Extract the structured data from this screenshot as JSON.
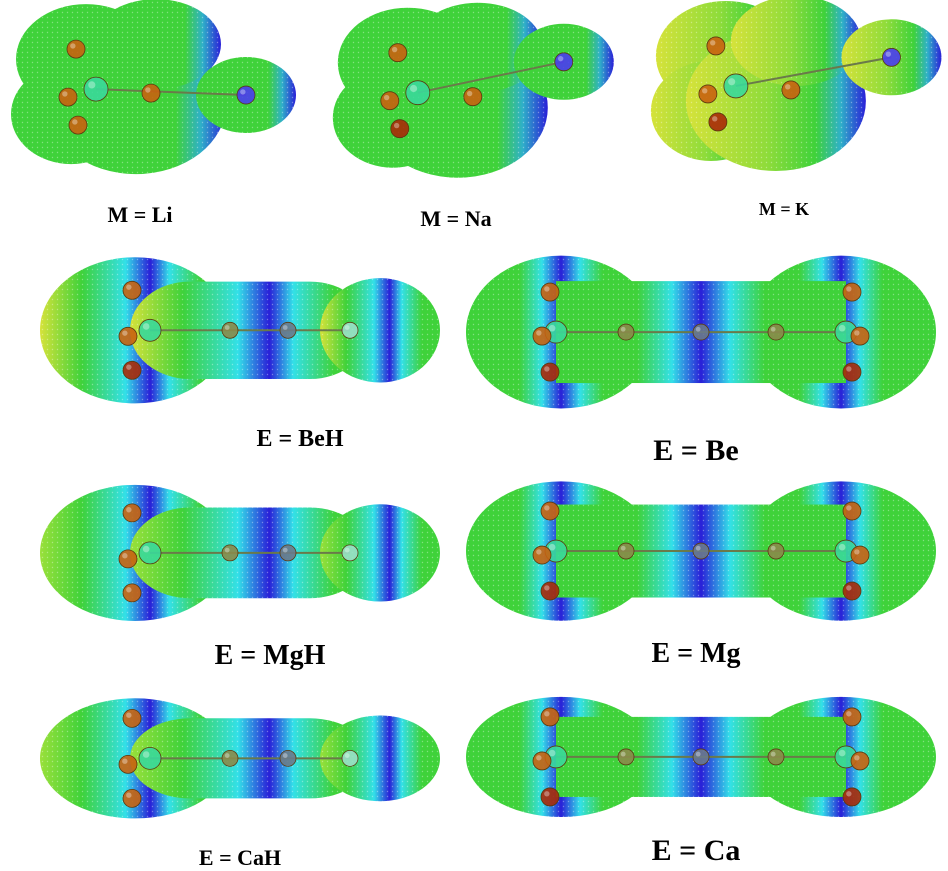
{
  "figure": {
    "panels": [
      {
        "id": "m-li",
        "label": "M = Li",
        "kind": "small",
        "tail": "right"
      },
      {
        "id": "m-na",
        "label": "M = Na",
        "kind": "small",
        "tail": "right"
      },
      {
        "id": "m-k",
        "label": "M = K",
        "kind": "small",
        "tail": "right"
      },
      {
        "id": "e-beh",
        "label": "E = BeH",
        "kind": "half"
      },
      {
        "id": "e-be",
        "label": "E = Be",
        "kind": "sym"
      },
      {
        "id": "e-mgh",
        "label": "E = MgH",
        "kind": "half"
      },
      {
        "id": "e-mg",
        "label": "E = Mg",
        "kind": "sym"
      },
      {
        "id": "e-cah",
        "label": "E = CaH",
        "kind": "half"
      },
      {
        "id": "e-ca",
        "label": "E = Ca",
        "kind": "sym"
      }
    ],
    "colors": {
      "surface_green": "#3fd23a",
      "surface_yellow": "#d6e23a",
      "surface_cyan": "#33e0e8",
      "surface_blue": "#2a1fd8",
      "atom_orange": "#c8620f",
      "atom_red": "#a82a08",
      "atom_teal": "#3ad89a",
      "atom_blue": "#4a3cf0",
      "bond": "#6a7a4a"
    }
  }
}
